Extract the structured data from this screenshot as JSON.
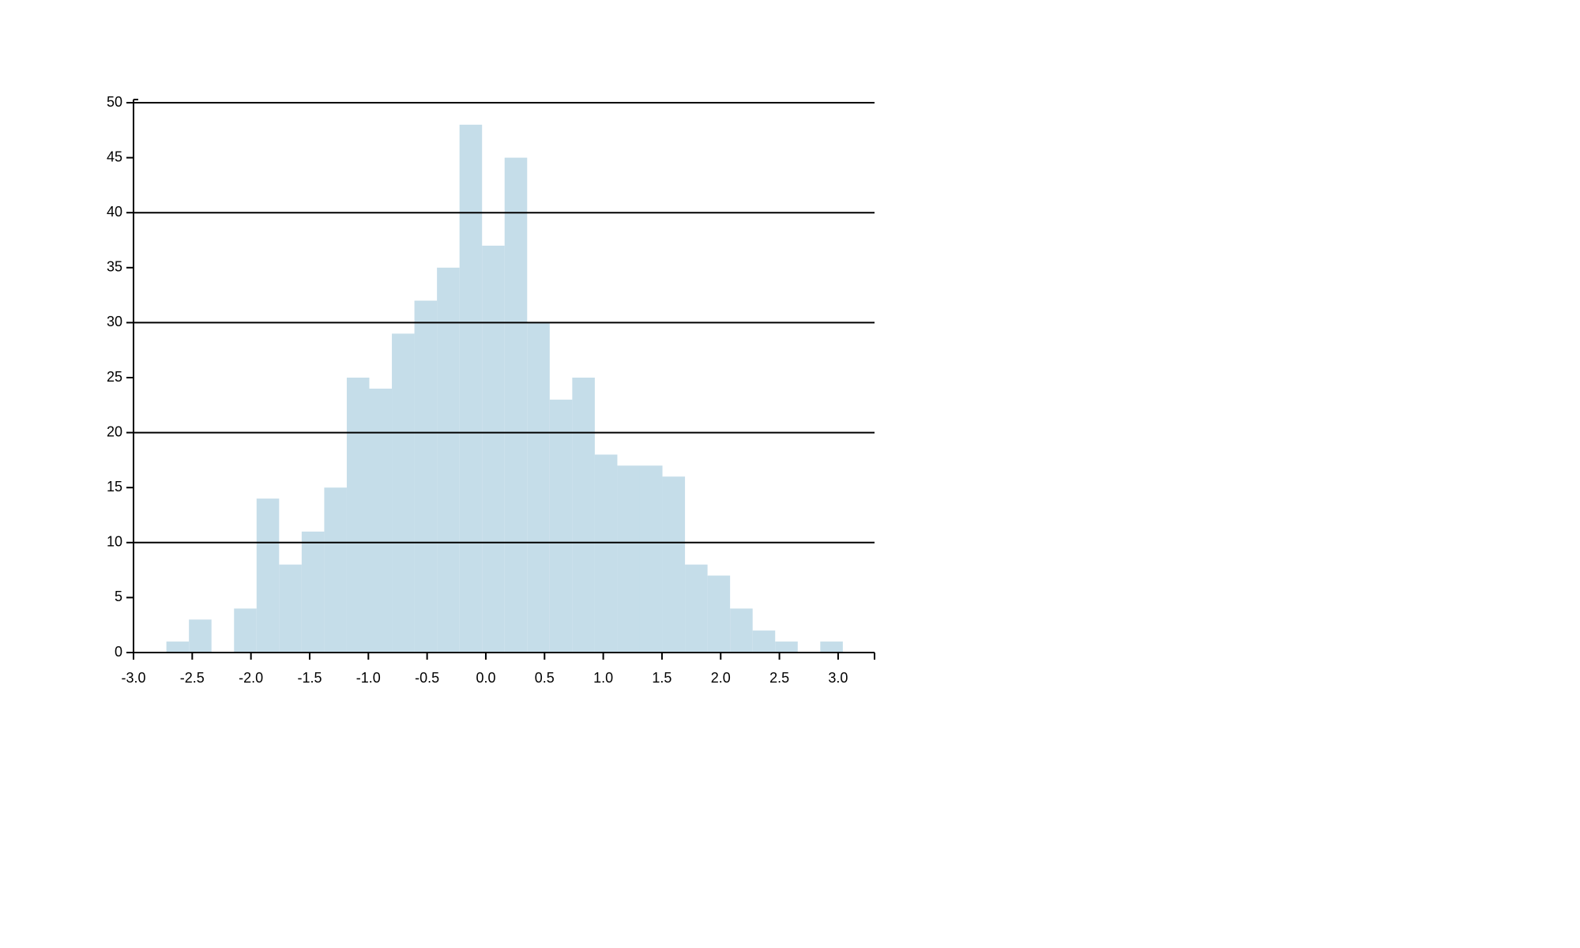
{
  "chart_data": {
    "type": "histogram",
    "bins": [
      -2.72,
      -2.528,
      -2.336,
      -2.144,
      -1.952,
      -1.76,
      -1.568,
      -1.376,
      -1.184,
      -0.992,
      -0.8,
      -0.608,
      -0.416,
      -0.224,
      -0.032,
      0.16,
      0.352,
      0.544,
      0.736,
      0.928,
      1.12,
      1.312,
      1.504,
      1.696,
      1.888,
      2.08,
      2.272,
      2.464,
      2.656,
      2.848,
      3.04
    ],
    "values": [
      1,
      3,
      0,
      4,
      14,
      8,
      11,
      15,
      25,
      24,
      29,
      32,
      35,
      48,
      37,
      45,
      30,
      23,
      25,
      18,
      17,
      17,
      16,
      8,
      7,
      4,
      2,
      1,
      0,
      1
    ],
    "color": "#c5dde9",
    "xlim": [
      -3.0,
      3.31
    ],
    "xticks": [
      {
        "value": -3,
        "label": "-3.0"
      },
      -2.5,
      {
        "value": -2,
        "label": "-2.0"
      },
      -1.5,
      {
        "value": -1,
        "label": "-1.0"
      },
      -0.5,
      {
        "value": 0,
        "label": "0.0"
      },
      0.5,
      {
        "value": 1,
        "label": "1.0"
      },
      1.5,
      {
        "value": 2,
        "label": "2.0"
      },
      2.5,
      {
        "value": 3,
        "label": "3.0"
      }
    ],
    "ylim": [
      0,
      50
    ],
    "yticks": [
      0,
      5,
      10,
      15,
      20,
      25,
      30,
      35,
      40,
      45,
      50
    ],
    "ygrid": [
      10,
      20,
      30,
      40,
      50
    ]
  }
}
